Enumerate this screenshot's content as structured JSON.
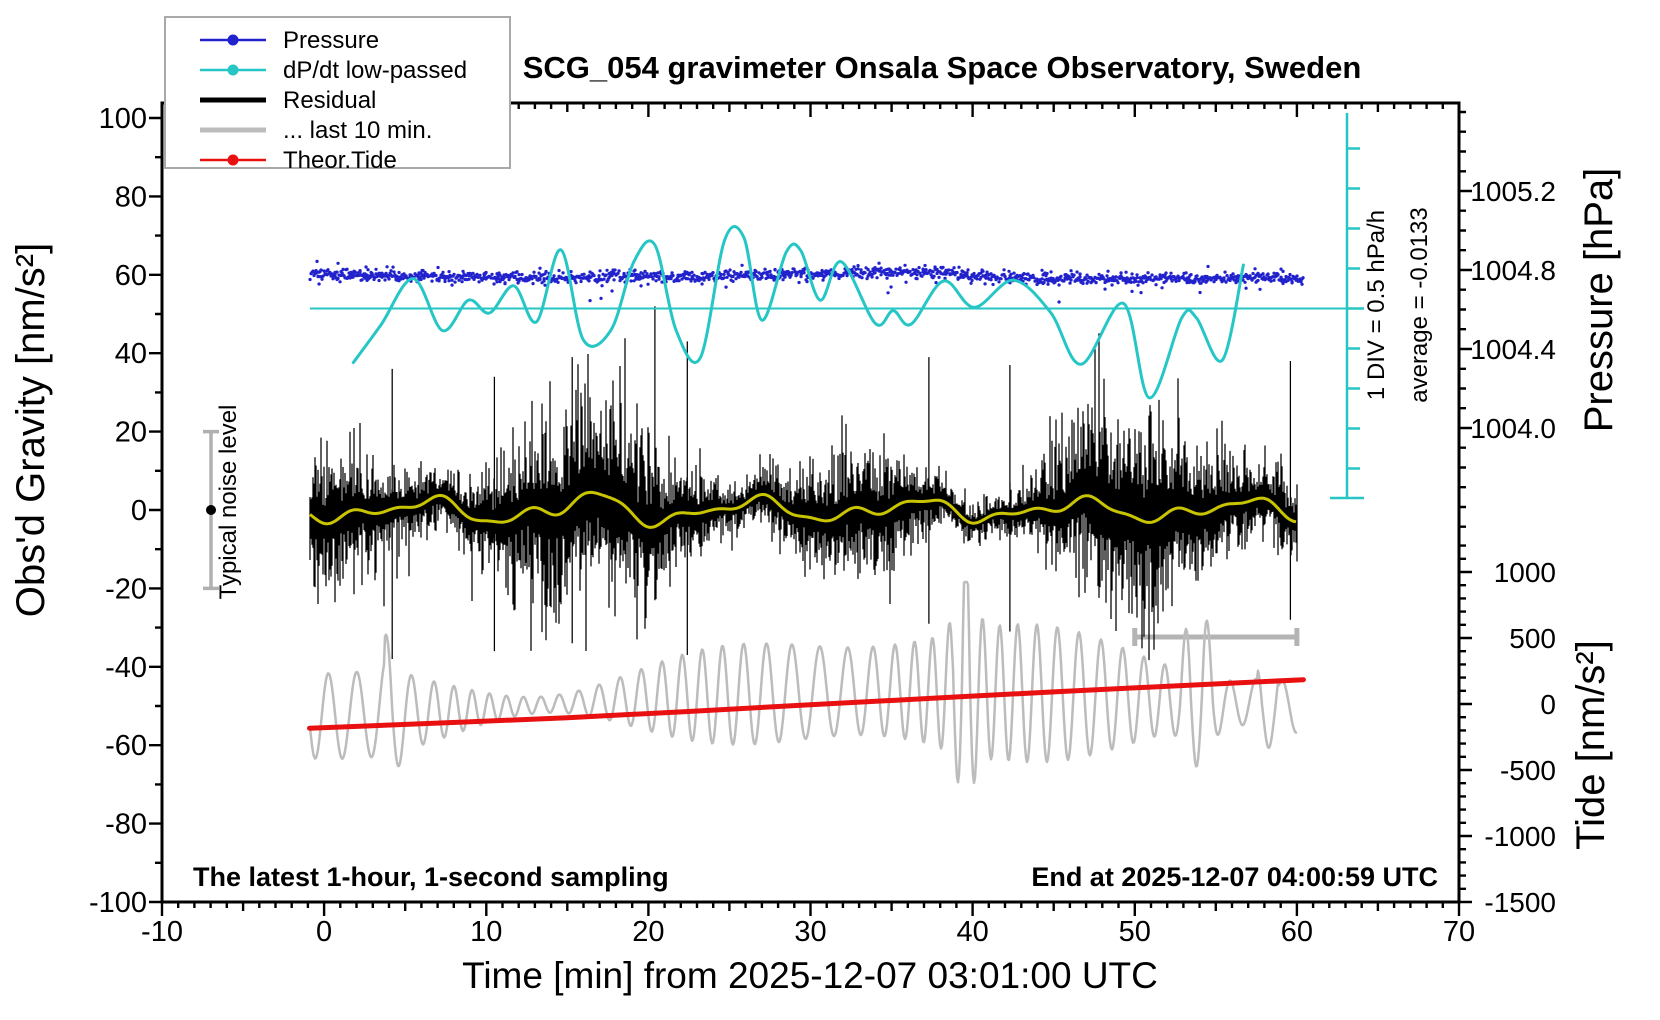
{
  "chart_data": {
    "type": "line",
    "title": "SCG_054 gravimeter Onsala Space Observatory, Sweden",
    "x_axis": {
      "label": "Time [min] from 2025-12-07 03:01:00 UTC",
      "range": [
        -10,
        70
      ],
      "major_tick_values": [
        -10,
        0,
        10,
        20,
        30,
        40,
        50,
        60,
        70
      ],
      "medium_step": 5,
      "minor_step": 1
    },
    "left_axis": {
      "label": "Obs'd Gravity [nm/s²]",
      "range": [
        -100,
        100
      ],
      "major_step": 20,
      "minor_step": 10
    },
    "pressure_axis": {
      "label": "Pressure [hPa]",
      "tick_values": [
        1004.0,
        1004.4,
        1004.8,
        1005.2
      ],
      "tick_labels": [
        "1004.0",
        "1004.4",
        "1004.8",
        "1005.2"
      ],
      "minor_step": 0.1,
      "minor_range": [
        1003.5,
        1005.6
      ]
    },
    "tide_axis": {
      "label": "Tide [nm/s²]",
      "tick_values": [
        -1500,
        -1000,
        -500,
        0,
        500,
        1000
      ],
      "tick_labels": [
        "-1500",
        "-1000",
        "-500",
        "0",
        "500",
        "1000"
      ],
      "minor_step": 100,
      "minor_range": [
        -1500,
        1200
      ]
    },
    "series": [
      {
        "name": "Pressure",
        "axis": "pressure",
        "unit": "hPa",
        "color": "#2222cc",
        "style": "noisy-dots",
        "noise_sd_hpa": 0.013,
        "trend_points": [
          [
            -0.9,
            1004.775
          ],
          [
            5,
            1004.77
          ],
          [
            10,
            1004.765
          ],
          [
            14,
            1004.755
          ],
          [
            18,
            1004.77
          ],
          [
            22,
            1004.765
          ],
          [
            26,
            1004.775
          ],
          [
            30,
            1004.78
          ],
          [
            33,
            1004.79
          ],
          [
            36,
            1004.785
          ],
          [
            38,
            1004.79
          ],
          [
            40,
            1004.77
          ],
          [
            43,
            1004.755
          ],
          [
            46,
            1004.76
          ],
          [
            49,
            1004.75
          ],
          [
            52,
            1004.76
          ],
          [
            55,
            1004.75
          ],
          [
            57,
            1004.765
          ],
          [
            60.4,
            1004.755
          ]
        ]
      },
      {
        "name": "dP/dt low-passed",
        "axis": "dpdt",
        "unit": "hPa/h",
        "color": "#26c6c6",
        "style": "smooth-line",
        "average": -0.0133,
        "div_value_hpa_per_h": 0.5,
        "points": [
          [
            1.8,
            -0.69
          ],
          [
            3.5,
            -0.22
          ],
          [
            5.5,
            0.36
          ],
          [
            7.3,
            -0.29
          ],
          [
            8.9,
            0.09
          ],
          [
            10.2,
            -0.07
          ],
          [
            11.7,
            0.27
          ],
          [
            13.1,
            -0.18
          ],
          [
            14.6,
            0.72
          ],
          [
            16.0,
            -0.41
          ],
          [
            17.7,
            -0.28
          ],
          [
            19.1,
            0.57
          ],
          [
            20.4,
            0.78
          ],
          [
            21.7,
            -0.28
          ],
          [
            23.2,
            -0.63
          ],
          [
            24.7,
            0.84
          ],
          [
            25.9,
            0.87
          ],
          [
            27.0,
            -0.16
          ],
          [
            28.5,
            0.69
          ],
          [
            29.4,
            0.71
          ],
          [
            30.6,
            0.09
          ],
          [
            31.9,
            0.57
          ],
          [
            34.0,
            -0.2
          ],
          [
            35.1,
            -0.04
          ],
          [
            36.2,
            -0.21
          ],
          [
            38.2,
            0.33
          ],
          [
            40.1,
            0.0
          ],
          [
            42.5,
            0.34
          ],
          [
            44.8,
            -0.06
          ],
          [
            46.7,
            -0.71
          ],
          [
            49.3,
            0.05
          ],
          [
            50.9,
            -1.13
          ],
          [
            52.9,
            -0.13
          ],
          [
            53.8,
            -0.13
          ],
          [
            55.4,
            -0.66
          ],
          [
            56.7,
            0.53
          ]
        ]
      },
      {
        "name": "Residual",
        "axis": "gravity",
        "unit": "nm/s²",
        "color": "#000000",
        "style": "noise-band",
        "mean": 1,
        "typical_amplitude": 20,
        "extreme_spikes": [
          [
            20.4,
            52,
            -23
          ],
          [
            22.4,
            43,
            -37
          ],
          [
            15.3,
            39,
            -34
          ],
          [
            4.2,
            36,
            -38
          ],
          [
            37.3,
            39,
            -29
          ],
          [
            42.3,
            37,
            -31
          ],
          [
            10.5,
            34,
            -36
          ],
          [
            59.6,
            38,
            -28
          ]
        ]
      },
      {
        "name": "Residual smoothed",
        "axis": "gravity",
        "unit": "nm/s²",
        "color": "#c9c400",
        "style": "smooth-line",
        "mean": 1,
        "wiggle_amplitude": 4
      },
      {
        "name": "... last 10 min.",
        "axis": "tide",
        "unit": "nm/s²",
        "color": "#bcbcbc",
        "style": "oscillation",
        "center": 0,
        "typical_amplitude": 450,
        "deep_excursion_minutes": [
          39.5,
          54.1,
          58.3
        ]
      },
      {
        "name": "Theor.Tide",
        "axis": "tide",
        "unit": "nm/s²",
        "color": "#e81010",
        "style": "line",
        "points": [
          [
            -0.9,
            -183
          ],
          [
            15,
            -104
          ],
          [
            29.4,
            -10
          ],
          [
            45,
            92
          ],
          [
            60.4,
            184
          ]
        ]
      }
    ],
    "annotations": {
      "div_scale": "1 DIV = 0.5 hPa/h",
      "average": "average = -0.0133",
      "noise_label": "Typical noise level",
      "noise_bar": {
        "center": 0,
        "half_range": 20
      },
      "sampling_note": "The latest 1-hour, 1-second sampling",
      "end_note": "End at 2025-12-07 04:00:59 UTC",
      "ten_min_bar": {
        "from_minute": 50,
        "to_minute": 60
      }
    }
  },
  "legend": {
    "items": [
      {
        "label": "Pressure",
        "color": "#2222cc",
        "lw": 2.5,
        "dot": true
      },
      {
        "label": "dP/dt low-passed",
        "color": "#26c6c6",
        "lw": 2.5,
        "dot": true
      },
      {
        "label": "Residual",
        "color": "#000000",
        "lw": 5,
        "dot": false
      },
      {
        "label": "... last 10 min.",
        "color": "#bcbcbc",
        "lw": 5,
        "dot": false
      },
      {
        "label": "Theor.Tide",
        "color": "#e81010",
        "lw": 2.5,
        "dot": true
      }
    ]
  }
}
